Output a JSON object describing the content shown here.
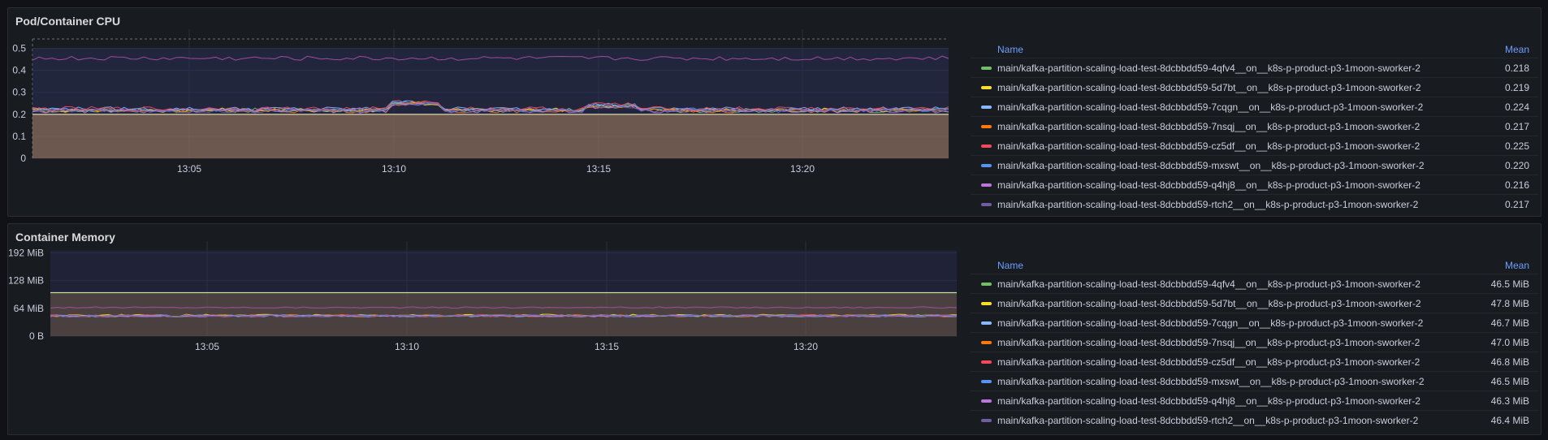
{
  "panels": [
    {
      "title": "Pod/Container CPU",
      "legend": {
        "name_header": "Name",
        "mean_header": "Mean",
        "items": [
          {
            "name": "main/kafka-partition-scaling-load-test-8dcbbdd59-4qfv4__on__k8s-p-product-p3-1moon-sworker-2",
            "mean": "0.218",
            "color": "#73bf69"
          },
          {
            "name": "main/kafka-partition-scaling-load-test-8dcbbdd59-5d7bt__on__k8s-p-product-p3-1moon-sworker-2",
            "mean": "0.219",
            "color": "#fade2a"
          },
          {
            "name": "main/kafka-partition-scaling-load-test-8dcbbdd59-7cqgn__on__k8s-p-product-p3-1moon-sworker-2",
            "mean": "0.224",
            "color": "#8ab8ff"
          },
          {
            "name": "main/kafka-partition-scaling-load-test-8dcbbdd59-7nsqj__on__k8s-p-product-p3-1moon-sworker-2",
            "mean": "0.217",
            "color": "#ff780a"
          },
          {
            "name": "main/kafka-partition-scaling-load-test-8dcbbdd59-cz5df__on__k8s-p-product-p3-1moon-sworker-2",
            "mean": "0.225",
            "color": "#f2495c"
          },
          {
            "name": "main/kafka-partition-scaling-load-test-8dcbbdd59-mxswt__on__k8s-p-product-p3-1moon-sworker-2",
            "mean": "0.220",
            "color": "#5794f2"
          },
          {
            "name": "main/kafka-partition-scaling-load-test-8dcbbdd59-q4hj8__on__k8s-p-product-p3-1moon-sworker-2",
            "mean": "0.216",
            "color": "#b877d9"
          },
          {
            "name": "main/kafka-partition-scaling-load-test-8dcbbdd59-rtch2__on__k8s-p-product-p3-1moon-sworker-2",
            "mean": "0.217",
            "color": "#705da0"
          }
        ]
      },
      "chart_data": {
        "type": "line",
        "x_ticks": [
          "13:05",
          "13:10",
          "13:15",
          "13:20"
        ],
        "y_ticks": [
          "0",
          "0.1",
          "0.2",
          "0.3",
          "0.4",
          "0.5"
        ],
        "ylim": [
          0,
          0.55
        ],
        "grid": true,
        "legend_position": "right",
        "series_means": [
          0.218,
          0.219,
          0.224,
          0.217,
          0.225,
          0.22,
          0.216,
          0.217
        ]
      }
    },
    {
      "title": "Container Memory",
      "legend": {
        "name_header": "Name",
        "mean_header": "Mean",
        "items": [
          {
            "name": "main/kafka-partition-scaling-load-test-8dcbbdd59-4qfv4__on__k8s-p-product-p3-1moon-sworker-2",
            "mean": "46.5 MiB",
            "color": "#73bf69"
          },
          {
            "name": "main/kafka-partition-scaling-load-test-8dcbbdd59-5d7bt__on__k8s-p-product-p3-1moon-sworker-2",
            "mean": "47.8 MiB",
            "color": "#fade2a"
          },
          {
            "name": "main/kafka-partition-scaling-load-test-8dcbbdd59-7cqgn__on__k8s-p-product-p3-1moon-sworker-2",
            "mean": "46.7 MiB",
            "color": "#8ab8ff"
          },
          {
            "name": "main/kafka-partition-scaling-load-test-8dcbbdd59-7nsqj__on__k8s-p-product-p3-1moon-sworker-2",
            "mean": "47.0 MiB",
            "color": "#ff780a"
          },
          {
            "name": "main/kafka-partition-scaling-load-test-8dcbbdd59-cz5df__on__k8s-p-product-p3-1moon-sworker-2",
            "mean": "46.8 MiB",
            "color": "#f2495c"
          },
          {
            "name": "main/kafka-partition-scaling-load-test-8dcbbdd59-mxswt__on__k8s-p-product-p3-1moon-sworker-2",
            "mean": "46.5 MiB",
            "color": "#5794f2"
          },
          {
            "name": "main/kafka-partition-scaling-load-test-8dcbbdd59-q4hj8__on__k8s-p-product-p3-1moon-sworker-2",
            "mean": "46.3 MiB",
            "color": "#b877d9"
          },
          {
            "name": "main/kafka-partition-scaling-load-test-8dcbbdd59-rtch2__on__k8s-p-product-p3-1moon-sworker-2",
            "mean": "46.4 MiB",
            "color": "#705da0"
          }
        ]
      },
      "chart_data": {
        "type": "line",
        "x_ticks": [
          "13:05",
          "13:10",
          "13:15",
          "13:20"
        ],
        "y_ticks": [
          "0 B",
          "64 MiB",
          "128 MiB",
          "192 MiB"
        ],
        "ylim": [
          0,
          200
        ],
        "grid": true,
        "legend_position": "right",
        "series_means": [
          46.5,
          47.8,
          46.7,
          47.0,
          46.8,
          46.5,
          46.3,
          46.4
        ]
      }
    }
  ]
}
